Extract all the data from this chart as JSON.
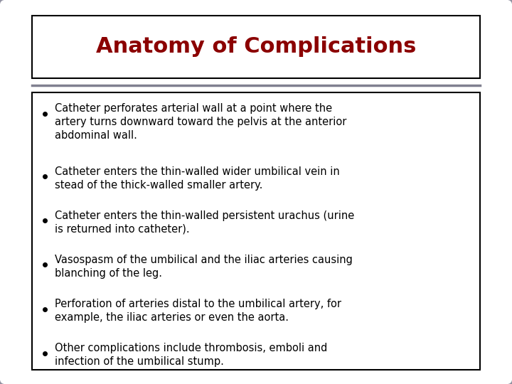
{
  "title": "Anatomy of Complications",
  "title_color": "#8B0000",
  "title_fontsize": 22,
  "bg_color": "#FFFFFF",
  "outer_border_color": "#9090A0",
  "inner_border_color": "#000000",
  "separator_color": "#808090",
  "bullet_points": [
    "Catheter perforates arterial wall at a point where the\nartery turns downward toward the pelvis at the anterior\nabdominal wall.",
    "Catheter enters the thin-walled wider umbilical vein in\nstead of the thick-walled smaller artery.",
    "Catheter enters the thin-walled persistent urachus (urine\nis returned into catheter).",
    "Vasospasm of the umbilical and the iliac arteries causing\nblanching of the leg.",
    "Perforation of arteries distal to the umbilical artery, for\nexample, the iliac arteries or even the aorta.",
    "Other complications include thrombosis, emboli and\ninfection of the umbilical stump."
  ],
  "bullet_fontsize": 10.5,
  "bullet_color": "#000000",
  "figsize": [
    7.2,
    5.4
  ],
  "dpi": 100
}
